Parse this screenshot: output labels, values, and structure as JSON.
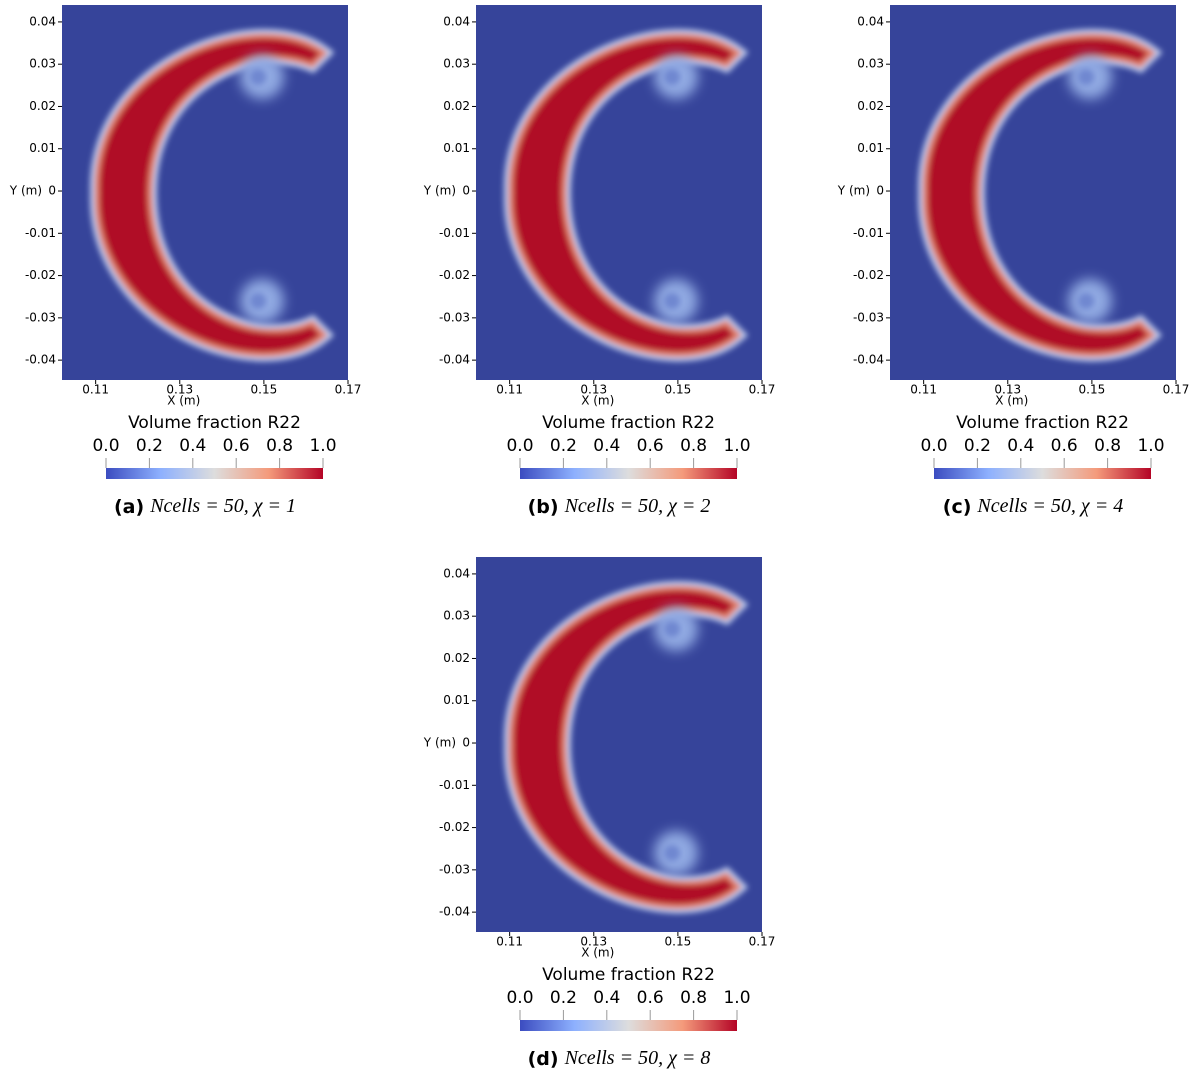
{
  "panels": [
    {
      "label": "(a)",
      "caption": "Ncells = 50, χ = 1",
      "x_label": "X (m)",
      "y_label": "Y (m)",
      "xlim": [
        0.102,
        0.17
      ],
      "ylim": [
        -0.0447,
        0.044
      ],
      "xticks": [
        0.11,
        0.13,
        0.15,
        0.17
      ],
      "yticks": [
        0.04,
        0.03,
        0.02,
        0.01,
        0,
        -0.01,
        -0.02,
        -0.03,
        -0.04
      ],
      "colorbar": {
        "title": "Volume fraction R22",
        "lim": [
          0,
          1
        ],
        "ticks": [
          {
            "value": 0,
            "label": "0.0"
          },
          0.2,
          0.4,
          0.6,
          0.8,
          {
            "value": 1,
            "label": "1.0"
          }
        ]
      }
    },
    {
      "label": "(b)",
      "caption": "Ncells = 50, χ = 2",
      "x_label": "X (m)",
      "y_label": "Y (m)",
      "xlim": [
        0.102,
        0.17
      ],
      "ylim": [
        -0.0447,
        0.044
      ],
      "xticks": [
        0.11,
        0.13,
        0.15,
        0.17
      ],
      "yticks": [
        0.04,
        0.03,
        0.02,
        0.01,
        0,
        -0.01,
        -0.02,
        -0.03,
        -0.04
      ],
      "colorbar": {
        "title": "Volume fraction R22",
        "lim": [
          0,
          1
        ],
        "ticks": [
          {
            "value": 0,
            "label": "0.0"
          },
          0.2,
          0.4,
          0.6,
          0.8,
          {
            "value": 1,
            "label": "1.0"
          }
        ]
      }
    },
    {
      "label": "(c)",
      "caption": "Ncells = 50, χ = 4",
      "x_label": "X (m)",
      "y_label": "Y (m)",
      "xlim": [
        0.102,
        0.17
      ],
      "ylim": [
        -0.0447,
        0.044
      ],
      "xticks": [
        0.11,
        0.13,
        0.15,
        0.17
      ],
      "yticks": [
        0.04,
        0.03,
        0.02,
        0.01,
        0,
        -0.01,
        -0.02,
        -0.03,
        -0.04
      ],
      "colorbar": {
        "title": "Volume fraction R22",
        "lim": [
          0,
          1
        ],
        "ticks": [
          {
            "value": 0,
            "label": "0.0"
          },
          0.2,
          0.4,
          0.6,
          0.8,
          {
            "value": 1,
            "label": "1.0"
          }
        ]
      }
    },
    {
      "label": "(d)",
      "caption": "Ncells = 50, χ = 8",
      "x_label": "X (m)",
      "y_label": "Y (m)",
      "xlim": [
        0.102,
        0.17
      ],
      "ylim": [
        -0.0447,
        0.044
      ],
      "xticks": [
        0.11,
        0.13,
        0.15,
        0.17
      ],
      "yticks": [
        0.04,
        0.03,
        0.02,
        0.01,
        0,
        -0.01,
        -0.02,
        -0.03,
        -0.04
      ],
      "colorbar": {
        "title": "Volume fraction R22",
        "lim": [
          0,
          1
        ],
        "ticks": [
          {
            "value": 0,
            "label": "0.0"
          },
          0.2,
          0.4,
          0.6,
          0.8,
          {
            "value": 1,
            "label": "1.0"
          }
        ]
      }
    }
  ]
}
